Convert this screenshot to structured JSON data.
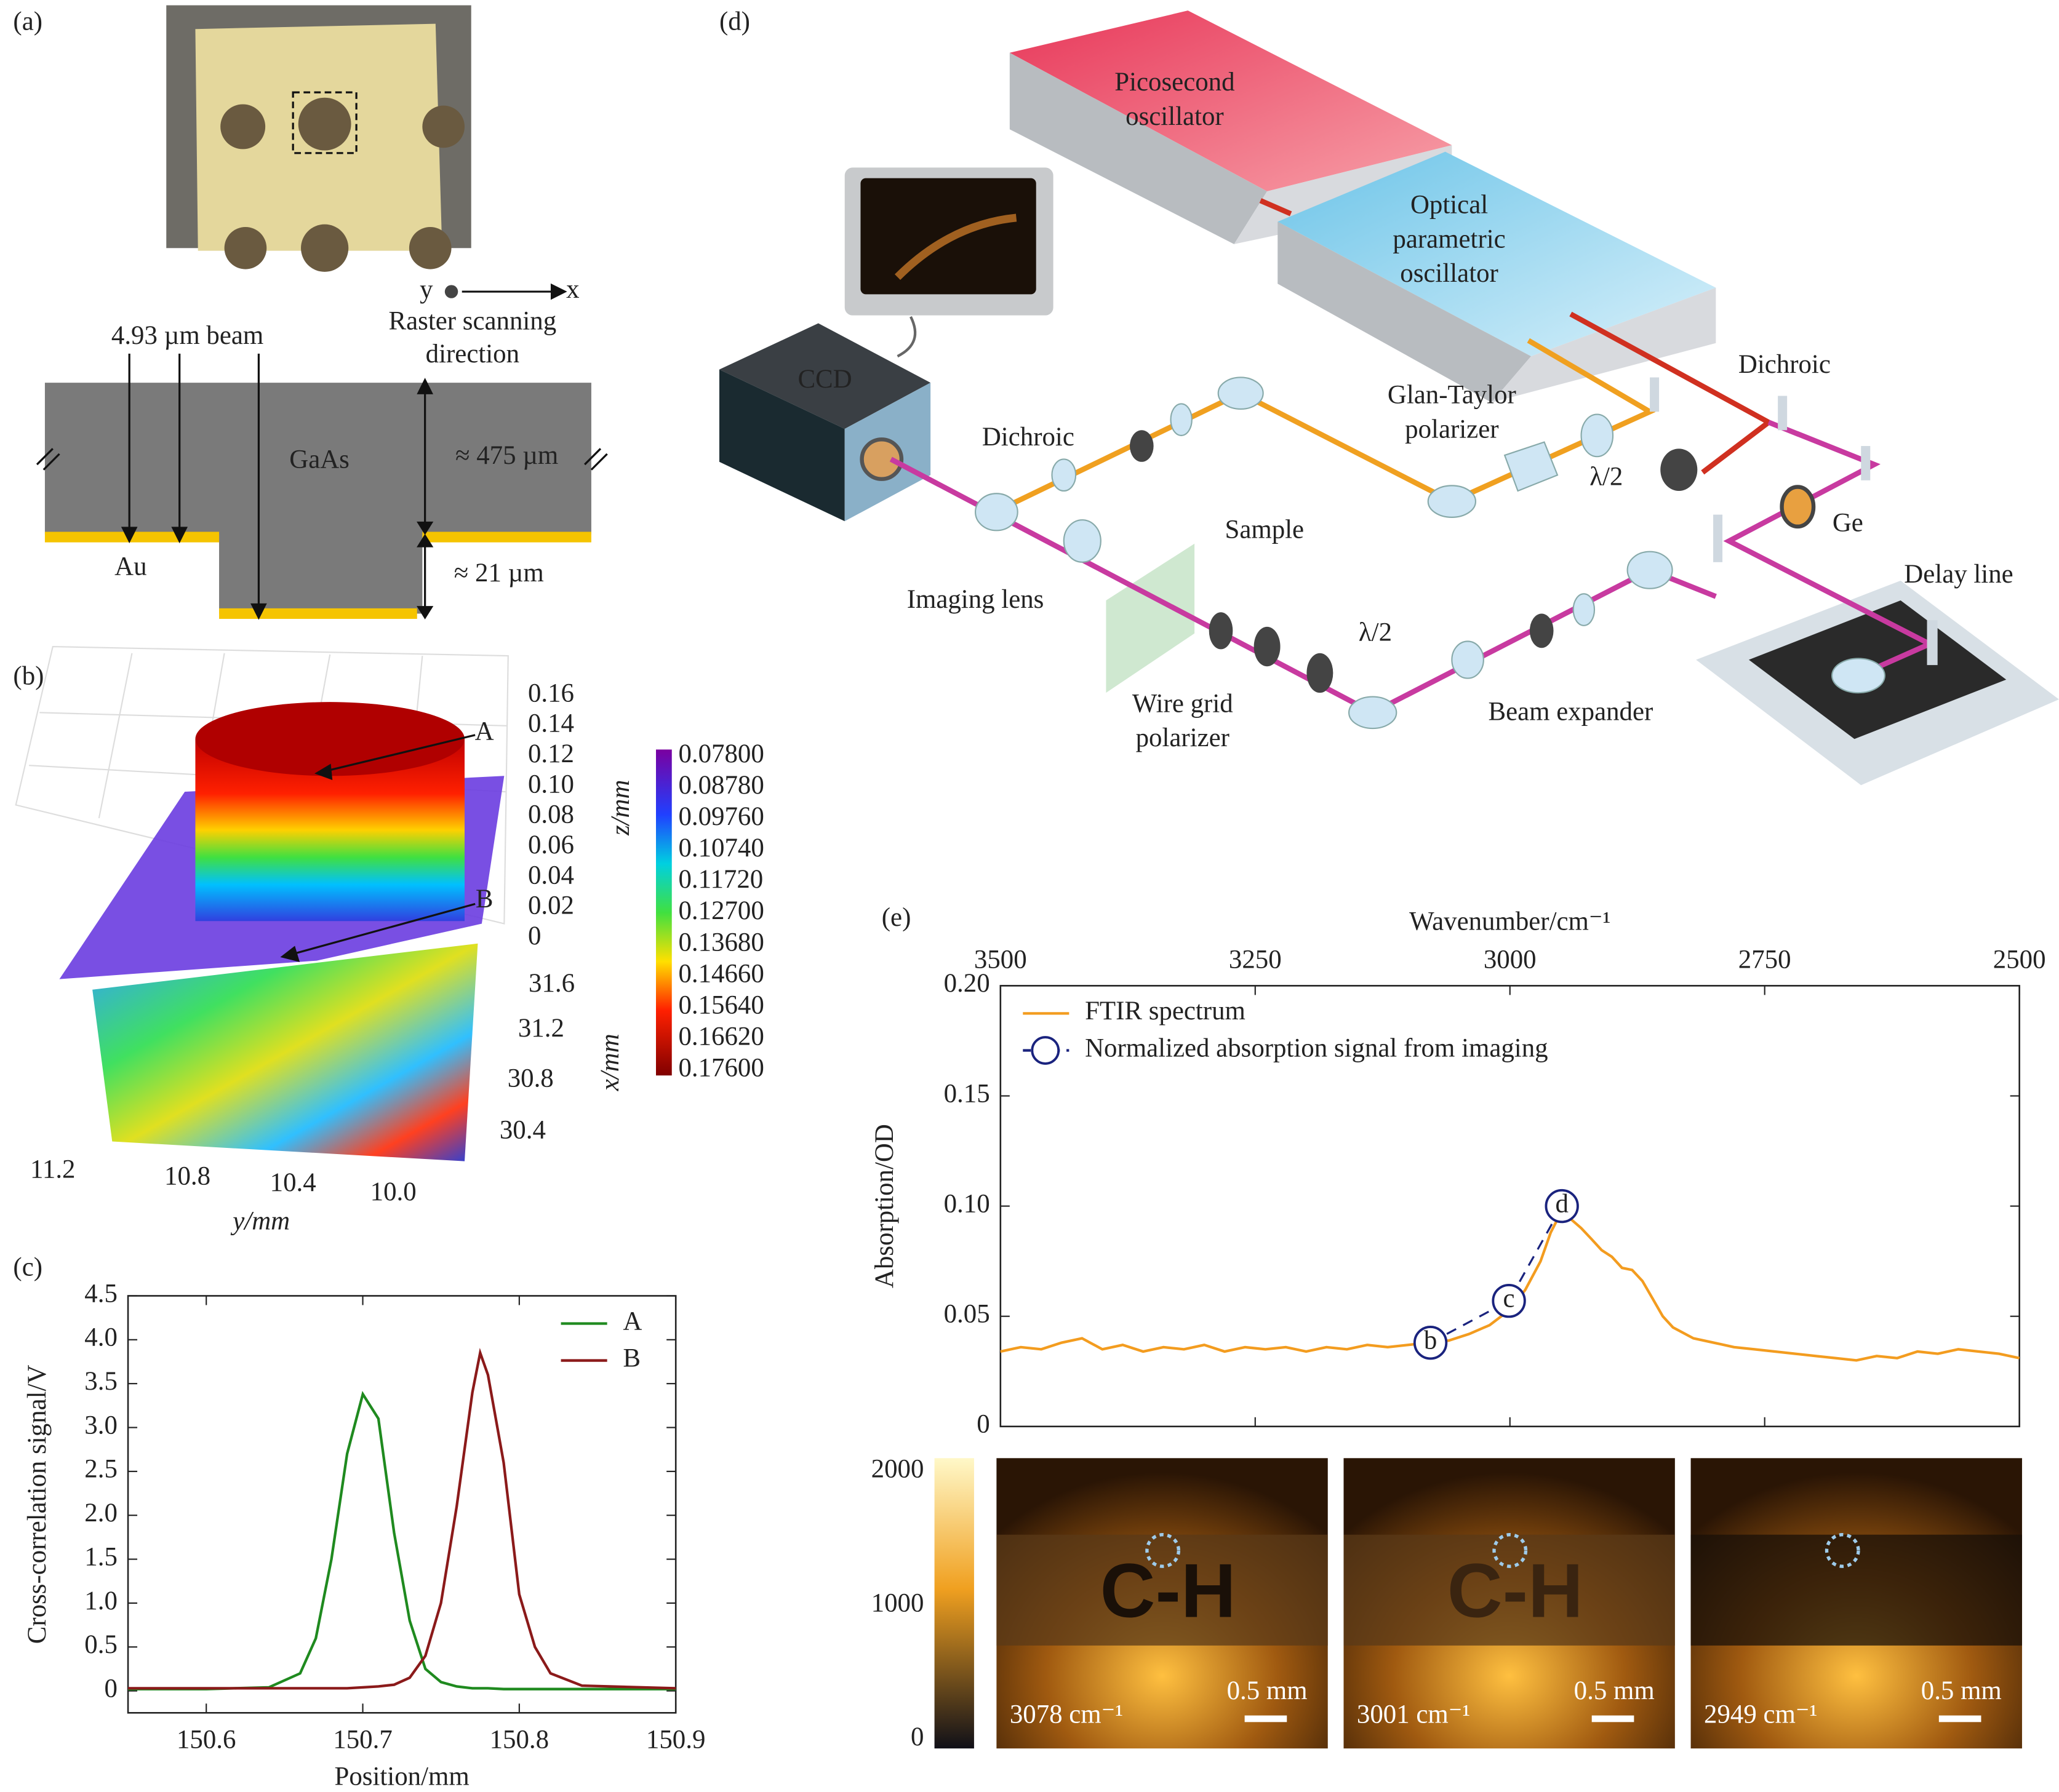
{
  "panels": {
    "a": {
      "label": "(a)",
      "texts": [
        "y",
        "x",
        "Raster scanning",
        "direction",
        "4.93 µm beam",
        "GaAs",
        "≈ 475 µm",
        "Au",
        "≈ 21 µm"
      ]
    },
    "b": {
      "label": "(b)",
      "markers": [
        "A",
        "B"
      ],
      "z_axis": {
        "label": "z/mm",
        "ticks": [
          "0.16",
          "0.14",
          "0.12",
          "0.10",
          "0.08",
          "0.06",
          "0.04",
          "0.02",
          "0"
        ]
      },
      "x_axis": {
        "label": "x/mm",
        "ticks": [
          "31.6",
          "31.2",
          "30.8",
          "30.4"
        ]
      },
      "y_axis": {
        "label": "y/mm",
        "ticks": [
          "11.2",
          "10.8",
          "10.4",
          "10.0"
        ]
      },
      "colorbar": [
        "0.07800",
        "0.08780",
        "0.09760",
        "0.10740",
        "0.11720",
        "0.12700",
        "0.13680",
        "0.14660",
        "0.15640",
        "0.16620",
        "0.17600"
      ]
    },
    "d": {
      "label": "(d)",
      "texts": [
        "Picosecond",
        "oscillator",
        "Optical",
        "parametric",
        "oscillator",
        "CCD",
        "Dichroic",
        "Glan-Taylor",
        "polarizer",
        "Dichroic",
        "λ/2",
        "Ge",
        "Delay line",
        "Sample",
        "Imaging lens",
        "λ/2",
        "Wire grid",
        "polarizer",
        "Beam expander"
      ]
    },
    "e_images": {
      "colorbar_ticks": [
        2000,
        1000,
        0
      ],
      "sample_marking": "C-H",
      "images": [
        {
          "label": "3078 cm⁻¹",
          "scale": "0.5 mm"
        },
        {
          "label": "3001 cm⁻¹",
          "scale": "0.5 mm"
        },
        {
          "label": "2949 cm⁻¹",
          "scale": "0.5 mm"
        }
      ]
    }
  },
  "chart_data": [
    {
      "type": "line",
      "label": "(c)",
      "xlabel": "Position/mm",
      "ylabel": "Cross-correlation signal/V",
      "xlim": [
        150.55,
        150.9
      ],
      "xticks": [
        150.6,
        150.7,
        150.8,
        150.9
      ],
      "ylim": [
        -0.25,
        4.5
      ],
      "yticks": [
        0,
        0.5,
        {
          "value": 1,
          "label": "1.0"
        },
        1.5,
        {
          "value": 2,
          "label": "2.0"
        },
        2.5,
        {
          "value": 3,
          "label": "3.0"
        },
        3.5,
        {
          "value": 4,
          "label": "4.0"
        },
        4.5
      ],
      "legend": "upper right",
      "x": [
        150.55,
        150.6,
        150.64,
        150.66,
        150.67,
        150.68,
        150.69,
        150.7,
        150.71,
        150.72,
        150.73,
        150.74,
        150.75,
        150.76,
        150.77,
        150.775,
        150.78,
        150.79,
        150.8,
        150.81,
        150.82,
        150.84,
        150.9
      ],
      "series": [
        {
          "name": "A",
          "color": "#1f8a1f",
          "values": [
            0.02,
            0.02,
            0.04,
            0.2,
            0.6,
            1.5,
            2.7,
            3.38,
            3.1,
            1.8,
            0.8,
            0.25,
            0.1,
            0.05,
            0.03,
            0.03,
            0.03,
            0.02,
            0.02,
            0.02,
            0.02,
            0.02,
            0.02
          ]
        },
        {
          "name": "B",
          "color": "#8b1a1a",
          "values": [
            0.03,
            0.03,
            0.03,
            0.03,
            0.03,
            0.03,
            0.03,
            0.04,
            0.05,
            0.07,
            0.15,
            0.4,
            1.0,
            2.1,
            3.4,
            3.85,
            3.6,
            2.6,
            1.1,
            0.5,
            0.2,
            0.06,
            0.03
          ]
        }
      ]
    },
    {
      "type": "line",
      "label": "(e)",
      "xlabel": "Wavenumber/cm⁻¹",
      "ylabel": "Absorption/OD",
      "x_axis_position": "top",
      "xlim": [
        3500,
        2500
      ],
      "xticks": [
        3500,
        3250,
        3000,
        2750,
        2500
      ],
      "ylim": [
        0,
        0.2
      ],
      "yticks": [
        0,
        0.05,
        {
          "value": 0.1,
          "label": "0.10"
        },
        0.15,
        {
          "value": 0.2,
          "label": "0.20"
        }
      ],
      "legend": "upper left",
      "series": [
        {
          "name": "FTIR spectrum",
          "color": "#f39c1f",
          "x": [
            3500,
            3480,
            3460,
            3440,
            3420,
            3400,
            3380,
            3360,
            3340,
            3320,
            3300,
            3280,
            3260,
            3240,
            3220,
            3200,
            3180,
            3160,
            3140,
            3120,
            3100,
            3080,
            3060,
            3040,
            3020,
            3000,
            2985,
            2970,
            2960,
            2950,
            2940,
            2930,
            2920,
            2910,
            2900,
            2890,
            2880,
            2870,
            2860,
            2850,
            2840,
            2820,
            2800,
            2780,
            2760,
            2740,
            2720,
            2700,
            2680,
            2660,
            2640,
            2620,
            2600,
            2580,
            2560,
            2540,
            2520,
            2500
          ],
          "values": [
            0.034,
            0.036,
            0.035,
            0.038,
            0.04,
            0.035,
            0.037,
            0.034,
            0.036,
            0.035,
            0.037,
            0.034,
            0.036,
            0.035,
            0.036,
            0.034,
            0.036,
            0.035,
            0.037,
            0.036,
            0.037,
            0.038,
            0.039,
            0.042,
            0.046,
            0.053,
            0.062,
            0.075,
            0.088,
            0.097,
            0.094,
            0.09,
            0.085,
            0.08,
            0.077,
            0.072,
            0.071,
            0.066,
            0.058,
            0.05,
            0.045,
            0.04,
            0.038,
            0.036,
            0.035,
            0.034,
            0.033,
            0.032,
            0.031,
            0.03,
            0.032,
            0.031,
            0.034,
            0.033,
            0.035,
            0.034,
            0.033,
            0.031
          ]
        },
        {
          "name": "Normalized absorption signal from imaging",
          "color": "#1a237e",
          "marker": "circle",
          "dashed": true,
          "x": [
            3078,
            3001,
            2949
          ],
          "values": [
            0.038,
            0.057,
            0.1
          ],
          "point_labels": [
            "b",
            "c",
            "d"
          ]
        }
      ]
    }
  ]
}
